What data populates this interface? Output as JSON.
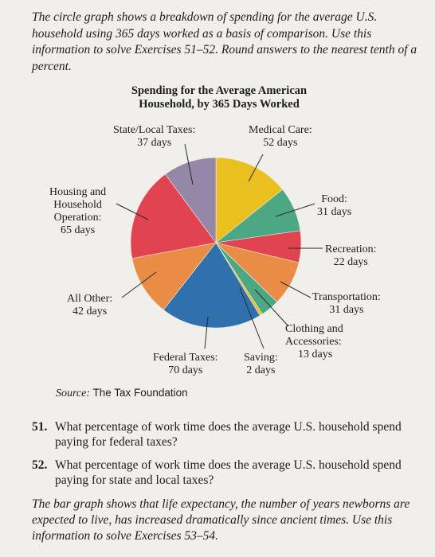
{
  "intro_text": "The circle graph shows a breakdown of spending for the average U.S. household using 365 days worked as a basis of comparison. Use this information to solve Exercises 51–52. Round answers to the nearest tenth of a percent.",
  "chart_data": {
    "type": "pie",
    "title_line1": "Spending for the Average American",
    "title_line2": "Household, by 365 Days Worked",
    "total": 365,
    "slices": [
      {
        "name": "Medical Care:",
        "value": 52,
        "value_label": "52 days",
        "color": "#e9c01d"
      },
      {
        "name": "Food:",
        "value": 31,
        "value_label": "31 days",
        "color": "#4ca883"
      },
      {
        "name": "Recreation:",
        "value": 22,
        "value_label": "22 days",
        "color": "#e24351"
      },
      {
        "name": "Transportation:",
        "value": 31,
        "value_label": "31 days",
        "color": "#e98c45"
      },
      {
        "name": "Clothing and Accessories:",
        "value": 13,
        "value_label": "13 days",
        "color": "#4ca883"
      },
      {
        "name": "Saving:",
        "value": 2,
        "value_label": "2 days",
        "color": "#e9c01d"
      },
      {
        "name": "Federal Taxes:",
        "value": 70,
        "value_label": "70 days",
        "color": "#2f71ad"
      },
      {
        "name": "All Other:",
        "value": 42,
        "value_label": "42 days",
        "color": "#e98c45"
      },
      {
        "name": "Housing and Household Operation:",
        "value": 65,
        "value_label": "65 days",
        "color": "#e24351"
      },
      {
        "name": "State/Local Taxes:",
        "value": 37,
        "value_label": "37 days",
        "color": "#9487a8"
      }
    ],
    "labels": {
      "medical": {
        "l1": "Medical Care:",
        "l2": "52 days"
      },
      "food": {
        "l1": "Food:",
        "l2": "31 days"
      },
      "recreation": {
        "l1": "Recreation:",
        "l2": "22 days"
      },
      "transportation": {
        "l1": "Transportation:",
        "l2": "31 days"
      },
      "clothing": {
        "l1": "Clothing and",
        "l2": "Accessories:",
        "l3": "13 days"
      },
      "saving": {
        "l1": "Saving:",
        "l2": "2 days"
      },
      "federal": {
        "l1": "Federal Taxes:",
        "l2": "70 days"
      },
      "allother": {
        "l1": "All Other:",
        "l2": "42 days"
      },
      "housing": {
        "l1": "Housing and",
        "l2": "Household",
        "l3": "Operation:",
        "l4": "65 days"
      },
      "statelocal": {
        "l1": "State/Local Taxes:",
        "l2": "37 days"
      }
    }
  },
  "source": {
    "label": "Source:",
    "value": "The Tax Foundation"
  },
  "exercises": [
    {
      "number": "51.",
      "text": "What percentage of work time does the average U.S. household spend paying for federal taxes?"
    },
    {
      "number": "52.",
      "text": "What percentage of work time does the average U.S. household spend paying for state and local taxes?"
    }
  ],
  "outro_text": "The bar graph shows that life expectancy, the number of years newborns are expected to live, has increased dramatically since ancient times. Use this information to solve Exercises 53–54."
}
